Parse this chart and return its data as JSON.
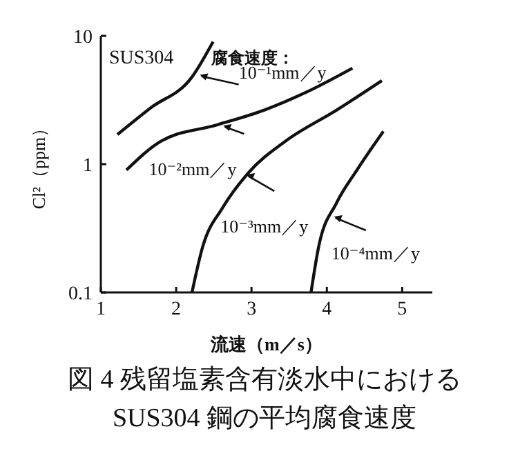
{
  "chart_data": {
    "type": "line",
    "title": "図 4 残留塩素含有淡水中における",
    "subtitle": "SUS304 鋼の平均腐食速度",
    "xlabel": "流速（m／s）",
    "ylabel": "Cl²（ppm）",
    "series": [
      {
        "color": "#111111",
        "x": [
          1.22,
          1.66,
          2.21,
          2.49
        ],
        "values": [
          1.7,
          2.74,
          4.78,
          9.0
        ]
      },
      {
        "color": "#111111",
        "x": [
          1.34,
          1.8,
          2.55,
          3.17,
          3.72,
          4.34
        ],
        "values": [
          0.9,
          1.51,
          2.03,
          2.64,
          3.62,
          5.6
        ]
      },
      {
        "color": "#111111",
        "x": [
          2.21,
          2.35,
          2.62,
          2.97,
          3.45,
          4.13,
          4.73
        ],
        "values": [
          0.1,
          0.225,
          0.46,
          0.87,
          1.51,
          2.64,
          4.48
        ]
      },
      {
        "color": "#111111",
        "x": [
          3.79,
          3.89,
          4.13,
          4.4,
          4.75
        ],
        "values": [
          0.1,
          0.225,
          0.5,
          0.9,
          1.8
        ]
      }
    ],
    "annotations": [
      "SUS304",
      "腐食速度：",
      {
        "text": "10⁻¹mm／y",
        "x": 2.28,
        "y": 4.97
      },
      {
        "text": "10⁻²mm／y",
        "x": 2.59,
        "y": 2.0
      },
      {
        "text": "10⁻³mm／y",
        "x": 2.9,
        "y": 0.83
      },
      {
        "text": "10⁻⁴mm／y",
        "x": 4.06,
        "y": 0.39
      }
    ],
    "xlim": [
      1,
      5.4
    ],
    "xticks": [
      1,
      2,
      3,
      4,
      5
    ],
    "ylim": [
      0.1,
      10
    ],
    "yticks": [
      0.1,
      1,
      10
    ],
    "log": "y",
    "marker": "none",
    "line_style": "solid"
  }
}
